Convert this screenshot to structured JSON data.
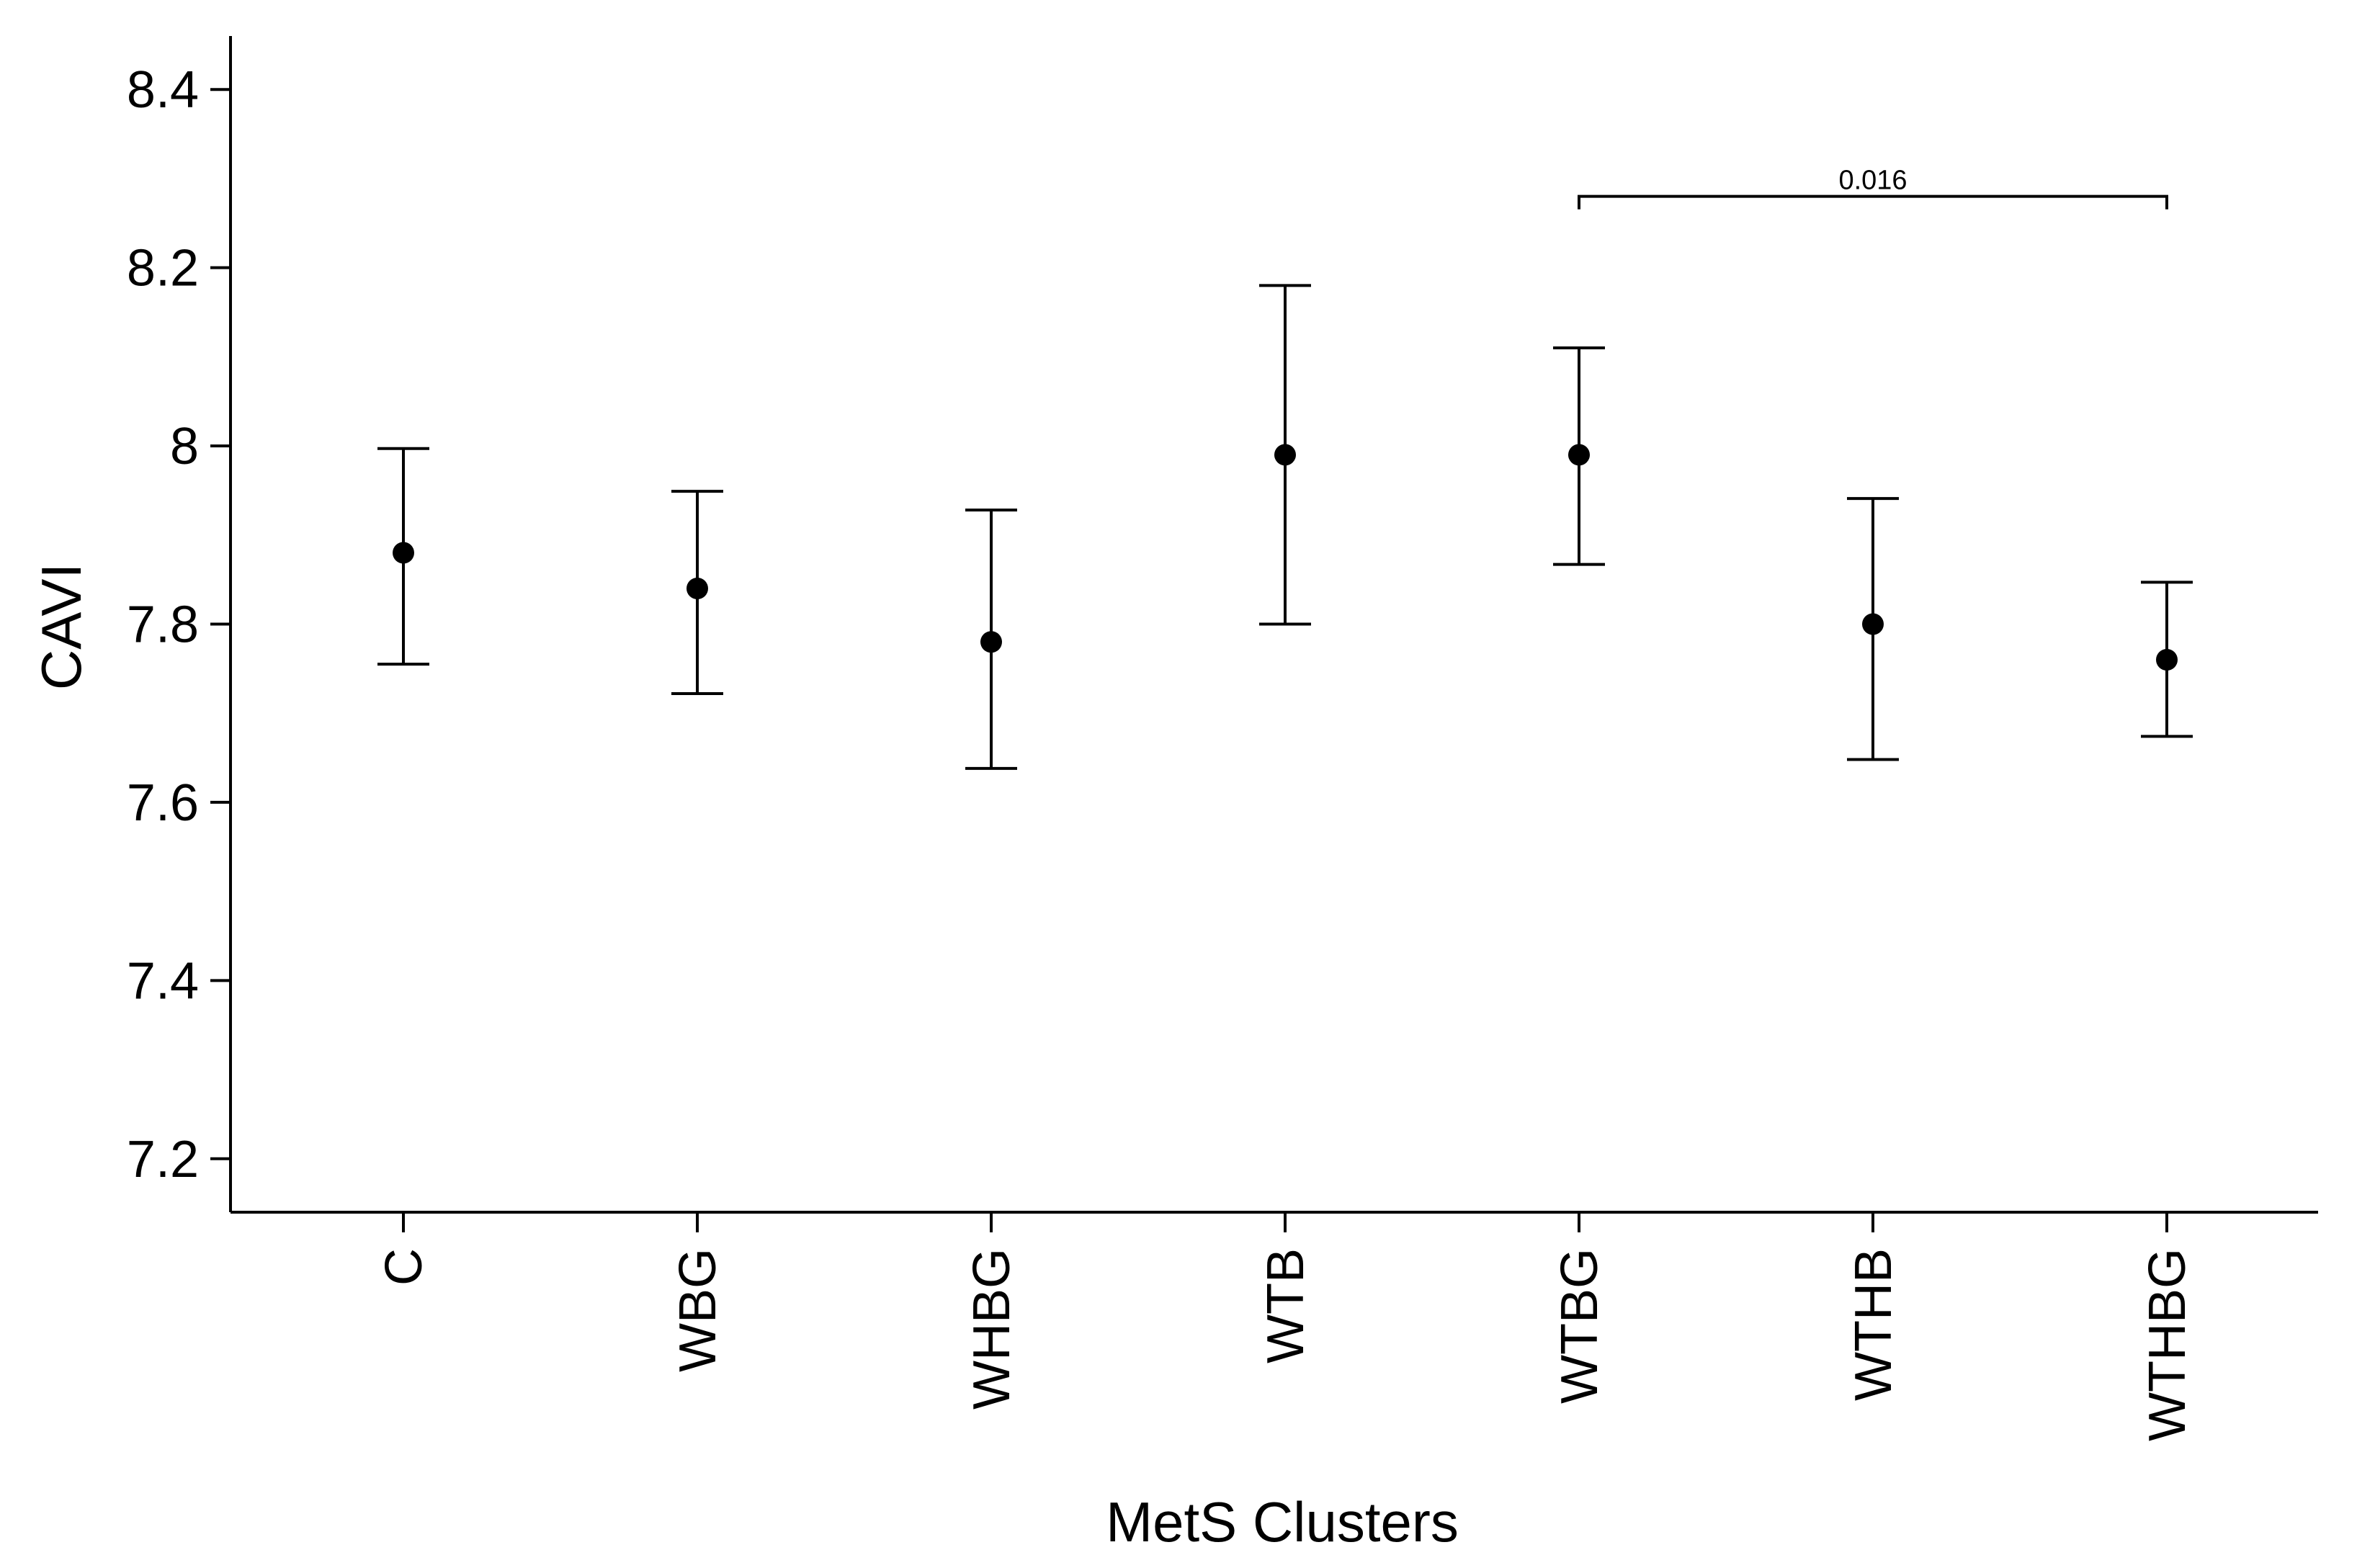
{
  "chart_data": {
    "type": "scatter",
    "xlabel": "MetS Clusters",
    "ylabel": "CAVI",
    "categories": [
      "C",
      "WBG",
      "WHBG",
      "WTB",
      "WTBG",
      "WTHB",
      "WTHBG"
    ],
    "values": [
      7.88,
      7.84,
      7.78,
      7.99,
      7.99,
      7.8,
      7.76
    ],
    "error_low": [
      7.755,
      7.722,
      7.638,
      7.8,
      7.867,
      7.648,
      7.674
    ],
    "error_high": [
      7.997,
      7.949,
      7.928,
      8.18,
      8.11,
      7.941,
      7.847
    ],
    "ylim": [
      7.14,
      8.46
    ],
    "yticks": [
      7.2,
      7.4,
      7.6,
      7.8,
      8,
      8.2,
      8.4
    ],
    "ytick_labels": [
      "7.2",
      "7.4",
      "7.6",
      "7.8",
      "8",
      "8.2",
      "8.4"
    ],
    "grid": false,
    "annotations": [
      {
        "text": "0.016",
        "from": "WTBG",
        "to": "WTHBG",
        "y": 8.28
      }
    ]
  }
}
